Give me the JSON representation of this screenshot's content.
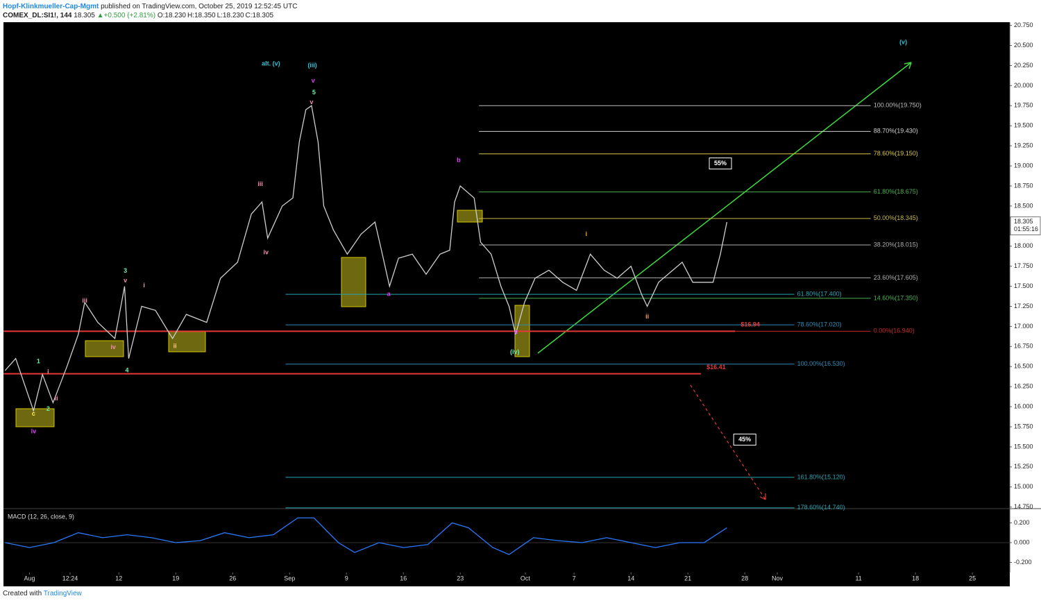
{
  "header": {
    "author": "Hopf-Klinkmueller-Cap-Mgmt",
    "published": "published on TradingView.com, October 25, 2019 12:52:45 UTC",
    "symbol": "COMEX_DL:SI1!, 144",
    "last": "18.305",
    "change": "+0.500 (+2.81%)",
    "quote": [
      {
        "label": "O:",
        "value": "18.230"
      },
      {
        "label": "H:",
        "value": "18.350"
      },
      {
        "label": "L:",
        "value": "18.230"
      },
      {
        "label": "C:",
        "value": "18.305"
      }
    ]
  },
  "chart_data": {
    "type": "line",
    "xlim": [
      209.8,
      333.6
    ],
    "ylim": [
      14.73,
      20.79
    ],
    "xticks": [
      {
        "value": 213,
        "label": "Aug"
      },
      {
        "value": 218,
        "label": "12:24"
      },
      {
        "value": 224,
        "label": "12"
      },
      {
        "value": 231,
        "label": "19"
      },
      {
        "value": 238,
        "label": "26"
      },
      {
        "value": 245,
        "label": "Sep"
      },
      {
        "value": 252,
        "label": "9"
      },
      {
        "value": 259,
        "label": "16"
      },
      {
        "value": 266,
        "label": "23"
      },
      {
        "value": 274,
        "label": "Oct"
      },
      {
        "value": 280,
        "label": "7"
      },
      {
        "value": 287,
        "label": "14"
      },
      {
        "value": 294,
        "label": "21"
      },
      {
        "value": 301,
        "label": "28"
      },
      {
        "value": 305,
        "label": "Nov"
      },
      {
        "value": 315,
        "label": "11"
      },
      {
        "value": 322,
        "label": "18"
      },
      {
        "value": 329,
        "label": "25"
      }
    ],
    "yticks": [
      {
        "value": 14.75,
        "label": "14.750"
      },
      {
        "value": 15,
        "label": "15.000"
      },
      {
        "value": 15.25,
        "label": "15.250"
      },
      {
        "value": 15.5,
        "label": "15.500"
      },
      {
        "value": 15.75,
        "label": "15.750"
      },
      {
        "value": 16,
        "label": "16.000"
      },
      {
        "value": 16.25,
        "label": "16.250"
      },
      {
        "value": 16.5,
        "label": "16.500"
      },
      {
        "value": 16.75,
        "label": "16.750"
      },
      {
        "value": 17,
        "label": "17.000"
      },
      {
        "value": 17.25,
        "label": "17.250"
      },
      {
        "value": 17.5,
        "label": "17.500"
      },
      {
        "value": 17.75,
        "label": "17.750"
      },
      {
        "value": 18,
        "label": "18.000"
      },
      {
        "value": 18.25,
        "label": "18.250"
      },
      {
        "value": 18.5,
        "label": "18.500"
      },
      {
        "value": 18.75,
        "label": "18.750"
      },
      {
        "value": 19,
        "label": "19.000"
      },
      {
        "value": 19.25,
        "label": "19.250"
      },
      {
        "value": 19.5,
        "label": "19.500"
      },
      {
        "value": 19.75,
        "label": "19.750"
      },
      {
        "value": 20,
        "label": "20.000"
      },
      {
        "value": 20.25,
        "label": "20.250"
      },
      {
        "value": 20.5,
        "label": "20.500"
      },
      {
        "value": 20.75,
        "label": "20.750"
      }
    ],
    "price": {
      "color": "#cfcfcf",
      "x": [
        210,
        211.3,
        213.5,
        214.6,
        215.9,
        217.6,
        219,
        219.8,
        221.4,
        223.5,
        224.7,
        225.2,
        226.8,
        228.5,
        230.6,
        232.3,
        234.8,
        236.5,
        238.6,
        240.3,
        241.6,
        242.3,
        244.1,
        245.4,
        246.2,
        247,
        247.7,
        248.5,
        249.2,
        250.4,
        252.1,
        253.8,
        255.5,
        256.3,
        257.3,
        258.4,
        260.1,
        261.8,
        263.5,
        264.7,
        265.3,
        266,
        267.7,
        268.5,
        269.8,
        271,
        272,
        272.8,
        273.9,
        275.2,
        276.9,
        278.6,
        280.3,
        282,
        283.7,
        285.3,
        287,
        288.3,
        289,
        290.4,
        293.3,
        294.6,
        297.1,
        298,
        298.8
      ],
      "values": [
        16.45,
        16.6,
        15.95,
        16.4,
        16.05,
        16.5,
        16.9,
        17.3,
        17.05,
        16.85,
        17.5,
        16.6,
        17.25,
        17.2,
        16.85,
        17.15,
        17.05,
        17.6,
        17.8,
        18.4,
        18.55,
        18.1,
        18.5,
        18.6,
        19.3,
        19.7,
        19.75,
        19.3,
        18.5,
        18.2,
        17.9,
        18.15,
        18.3,
        17.95,
        17.5,
        17.85,
        17.9,
        17.65,
        17.9,
        17.95,
        18.55,
        18.75,
        18.6,
        18.05,
        17.9,
        17.5,
        17.25,
        16.9,
        17.3,
        17.6,
        17.7,
        17.55,
        17.45,
        17.9,
        17.7,
        17.6,
        17.75,
        17.4,
        17.25,
        17.55,
        17.8,
        17.55,
        17.55,
        17.9,
        18.3
      ]
    },
    "last_price": 18.305,
    "countdown": "01:55:16",
    "fib_groups": [
      {
        "x_from": 268.3,
        "x_to": 316.5,
        "levels": [
          {
            "label": "100.00%(19.750)",
            "price": 19.75,
            "color": "#bdbdbd"
          },
          {
            "label": "88.70%(19.430)",
            "price": 19.43,
            "color": "#d0d0d0"
          },
          {
            "label": "78.60%(19.150)",
            "price": 19.15,
            "color": "#d8c848"
          },
          {
            "label": "61.80%(18.675)",
            "price": 18.675,
            "color": "#4caf50"
          },
          {
            "label": "50.00%(18.345)",
            "price": 18.345,
            "color": "#c9b94a"
          },
          {
            "label": "38.20%(18.015)",
            "price": 18.015,
            "color": "#b0b0b0"
          },
          {
            "label": "23.60%(17.605)",
            "price": 17.605,
            "color": "#b0b0b0"
          },
          {
            "label": "14.60%(17.350)",
            "price": 17.35,
            "color": "#4caf50"
          },
          {
            "label": "0.00%(16.940)",
            "price": 16.94,
            "color": "#c62828"
          }
        ]
      },
      {
        "x_from": 244.5,
        "x_to": 307.1,
        "levels": [
          {
            "label": "61.80%(17.400)",
            "price": 17.4,
            "color": "#26a5b5"
          },
          {
            "label": "78.60%(17.020)",
            "price": 17.02,
            "color": "#2e8bb8"
          },
          {
            "label": "100.00%(16.530)",
            "price": 16.53,
            "color": "#2e8bb8"
          },
          {
            "label": "161.80%(15.120)",
            "price": 15.12,
            "color": "#26a5b5"
          },
          {
            "label": "178.60%(14.740)",
            "price": 14.74,
            "color": "#26a5b5"
          }
        ]
      }
    ],
    "key_levels": {
      "color": "#e53935",
      "levels": [
        {
          "label": "$16.94",
          "price": 16.94,
          "x_to": 299.8
        },
        {
          "label": "$16.41",
          "price": 16.41,
          "x_to": 295.6
        }
      ]
    },
    "annotations": [
      {
        "text": "alt. (v)",
        "x": 242.7,
        "y": 20.27,
        "color": "#26c6da"
      },
      {
        "text": "(iii)",
        "x": 247.8,
        "y": 20.25,
        "color": "#26c6da"
      },
      {
        "text": "v",
        "x": 247.9,
        "y": 20.06,
        "color": "#e040fb"
      },
      {
        "text": "5",
        "x": 248.0,
        "y": 19.91,
        "color": "#69f0ae"
      },
      {
        "text": "v",
        "x": 247.7,
        "y": 19.79,
        "color": "#f48fb1"
      },
      {
        "text": "iii",
        "x": 241.4,
        "y": 18.77,
        "color": "#f48fb1"
      },
      {
        "text": "iv",
        "x": 242.1,
        "y": 17.92,
        "color": "#f48fb1"
      },
      {
        "text": "b",
        "x": 265.8,
        "y": 19.07,
        "color": "#e040fb"
      },
      {
        "text": "a",
        "x": 257.2,
        "y": 17.4,
        "color": "#e040fb"
      },
      {
        "text": "3",
        "x": 224.8,
        "y": 17.69,
        "color": "#69f0ae"
      },
      {
        "text": "v",
        "x": 224.8,
        "y": 17.57,
        "color": "#f48fb1"
      },
      {
        "text": "i",
        "x": 227.1,
        "y": 17.51,
        "color": "#f48fb1"
      },
      {
        "text": "iii",
        "x": 219.8,
        "y": 17.32,
        "color": "#f48fb1"
      },
      {
        "text": "iv",
        "x": 223.3,
        "y": 16.74,
        "color": "#f48fb1"
      },
      {
        "text": "ii",
        "x": 230.9,
        "y": 16.75,
        "color": "#ffcc80"
      },
      {
        "text": "4",
        "x": 225.0,
        "y": 16.45,
        "color": "#69f0ae"
      },
      {
        "text": "1",
        "x": 214.1,
        "y": 16.56,
        "color": "#69f0ae"
      },
      {
        "text": "i",
        "x": 215.3,
        "y": 16.43,
        "color": "#f48fb1"
      },
      {
        "text": "2",
        "x": 215.3,
        "y": 15.97,
        "color": "#69f0ae"
      },
      {
        "text": "ii",
        "x": 216.3,
        "y": 16.1,
        "color": "#f48fb1"
      },
      {
        "text": "c",
        "x": 213.5,
        "y": 15.91,
        "color": "#ffee58"
      },
      {
        "text": "iv",
        "x": 213.5,
        "y": 15.69,
        "color": "#e040fb"
      },
      {
        "text": "(iv)",
        "x": 272.7,
        "y": 16.68,
        "color": "#69f0ae"
      },
      {
        "text": "c",
        "x": 272.9,
        "y": 16.93,
        "color": "#e040fb"
      },
      {
        "text": "i",
        "x": 281.5,
        "y": 18.15,
        "color": "#ffa726"
      },
      {
        "text": "ii",
        "x": 289.0,
        "y": 17.12,
        "color": "#ffa726"
      },
      {
        "text": "(v)",
        "x": 320.5,
        "y": 20.54,
        "color": "#26c6da"
      },
      {
        "text": "55%",
        "x": 298.0,
        "y": 19.03,
        "color": "#ffffff",
        "boxed": true
      },
      {
        "text": "45%",
        "x": 301.0,
        "y": 15.59,
        "color": "#ffffff",
        "boxed": true
      }
    ],
    "macd": {
      "title": "MACD (12, 26, close, 9)",
      "color": "#2979ff",
      "ylim": [
        -0.302,
        0.344
      ],
      "yticks": [
        {
          "value": 0.2,
          "label": "0.200"
        },
        {
          "value": 0,
          "label": "0.000"
        },
        {
          "value": -0.2,
          "label": "-0.200"
        }
      ],
      "x": [
        210,
        213,
        216,
        219,
        222,
        225,
        228,
        231,
        234,
        237,
        240,
        243,
        246,
        248,
        251,
        253,
        256,
        259,
        262,
        265,
        267,
        270,
        272,
        275,
        278,
        281,
        284,
        287,
        290,
        293,
        296,
        298.8
      ],
      "values": [
        0,
        -0.05,
        0,
        0.1,
        0.05,
        0.08,
        0.05,
        0,
        0.02,
        0.1,
        0.05,
        0.08,
        0.25,
        0.25,
        0,
        -0.1,
        0,
        -0.05,
        -0.02,
        0.2,
        0.15,
        -0.05,
        -0.12,
        0.05,
        0.02,
        0,
        0.05,
        0,
        -0.05,
        0,
        0,
        0.15
      ]
    }
  },
  "footer": {
    "created": "Created with",
    "brand": "TradingView"
  }
}
